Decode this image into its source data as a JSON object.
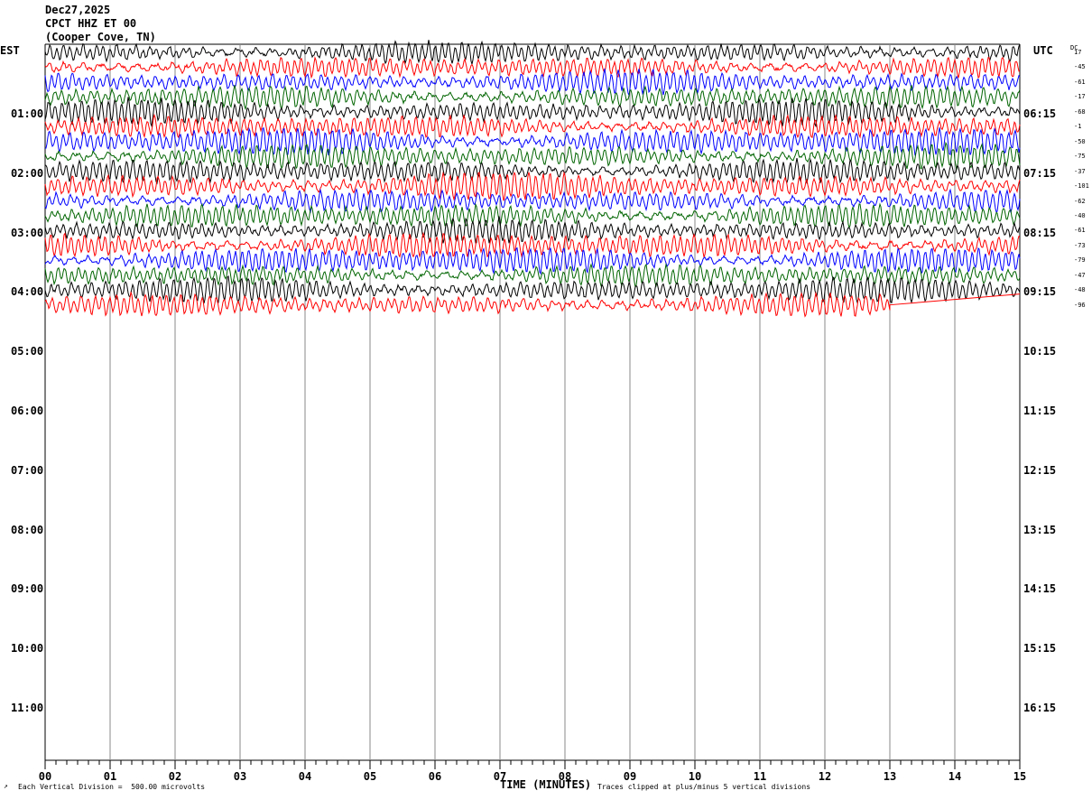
{
  "header": {
    "date": "Dec27,2025",
    "station": "CPCT HHZ ET 00",
    "location": "(Cooper Cove, TN)"
  },
  "left_zone": "EST",
  "right_zone": "UTC",
  "dc_header": "DC",
  "est_labels": [
    "01:00",
    "02:00",
    "03:00",
    "04:00",
    "05:00",
    "06:00",
    "07:00",
    "08:00",
    "09:00",
    "10:00",
    "11:00"
  ],
  "utc_labels": [
    "06:15",
    "07:15",
    "08:15",
    "09:15",
    "10:15",
    "11:15",
    "12:15",
    "13:15",
    "14:15",
    "15:15",
    "16:15"
  ],
  "dc_offsets": [
    "17",
    "-45",
    "-61",
    "-17",
    "-68",
    "-1",
    "-50",
    "-75",
    "-37",
    "-101",
    "-62",
    "-40",
    "-61",
    "-73",
    "-79",
    "-47",
    "-48",
    "-96"
  ],
  "footer": {
    "division": "Each Vertical Division =  500.00 microvolts",
    "xlabel": "TIME (MINUTES)",
    "clip": "Traces clipped at plus/minus 5 vertical divisions"
  },
  "chart_data": {
    "type": "line",
    "title": "CPCT HHZ ET 00 (Cooper Cove, TN)",
    "xlabel": "TIME (MINUTES)",
    "x_ticks": [
      "00",
      "01",
      "02",
      "03",
      "04",
      "05",
      "06",
      "07",
      "08",
      "09",
      "10",
      "11",
      "12",
      "13",
      "14",
      "15"
    ],
    "xlim": [
      0,
      15
    ],
    "minutes_per_line": 15,
    "trace_colors": [
      "#000000",
      "#ff0000",
      "#0000ff",
      "#006400"
    ],
    "trace_count": 18,
    "last_trace_end_minute": 13,
    "units_per_division": "500.00 microvolts",
    "clip_divisions": 5
  }
}
